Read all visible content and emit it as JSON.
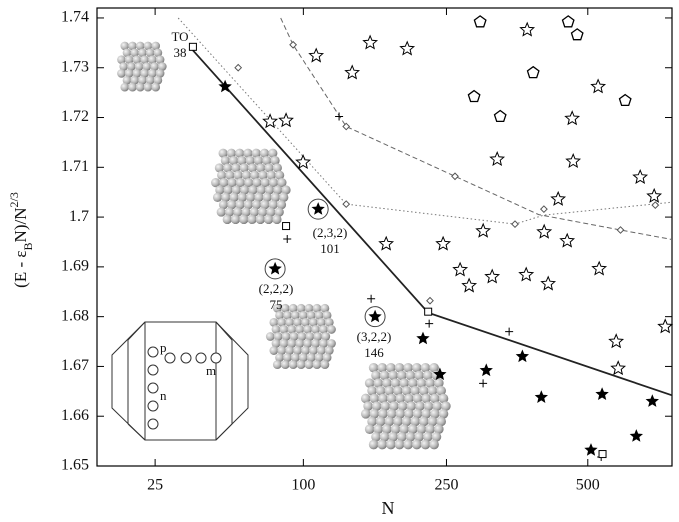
{
  "chart_data": {
    "type": "scatter",
    "xlabel": "N",
    "ylabel_parts": [
      "(E - ε",
      "B",
      "N)/N",
      "2/3"
    ],
    "xscale": "cbrt",
    "xlim": [
      11.4,
      708
    ],
    "ylim": [
      1.65,
      1.742
    ],
    "xticks": [
      25,
      100,
      250,
      500
    ],
    "yticks": [
      1.65,
      1.66,
      1.67,
      1.68,
      1.69,
      1.7,
      1.71,
      1.72,
      1.73,
      1.74
    ],
    "series": [
      {
        "marker": "none",
        "line": "solid",
        "color": "#222",
        "x": [
          38,
          225.6,
          708
        ],
        "values": [
          1.7335,
          1.6808,
          1.6642
        ]
      },
      {
        "marker": "none",
        "line": "dashed",
        "color": "#666",
        "x": [
          84,
          92.5,
          135.6,
          262,
          400,
          575,
          708
        ],
        "values": [
          1.74,
          1.7346,
          1.7182,
          1.7082,
          1.7005,
          1.6974,
          1.6955
        ]
      },
      {
        "marker": "none",
        "line": "dotted",
        "color": "#777",
        "x": [
          32.5,
          135.6,
          357,
          410,
          708
        ],
        "values": [
          1.74,
          1.7026,
          1.6986,
          1.7004,
          1.703
        ]
      },
      {
        "marker": "diamond",
        "color": "#555",
        "x": [
          58.7,
          92.5,
          135.6,
          135.6,
          228,
          262,
          357,
          410,
          575,
          663
        ],
        "values": [
          1.73,
          1.7346,
          1.7182,
          1.7026,
          1.6832,
          1.7082,
          1.6986,
          1.7016,
          1.6974,
          1.7024
        ]
      },
      {
        "marker": "star-filled",
        "color": "#000",
        "x": [
          52.1,
          80.3,
          111.5,
          163.9,
          219,
          241,
          309,
          370,
          405,
          507,
          532,
          614,
          655
        ],
        "values": [
          1.7262,
          1.6896,
          1.7016,
          1.68,
          1.6756,
          1.6684,
          1.6692,
          1.672,
          1.6638,
          1.6532,
          1.6644,
          1.656,
          1.663
        ]
      },
      {
        "marker": "star-open",
        "color": "#000",
        "x": [
          77.1,
          87.6,
          99.8,
          109.9,
          141.2,
          158.8,
          199.6,
          175.7,
          245.4,
          269.3,
          282.6,
          304.1,
          318.5,
          326.7,
          378.7,
          376.9,
          410.5,
          418.2,
          437.9,
          456.2,
          466.6,
          468.7,
          523,
          525.3,
          564.8,
          623.7,
          659.9,
          689.4,
          569.5
        ],
        "values": [
          1.7192,
          1.7194,
          1.711,
          1.7324,
          1.729,
          1.735,
          1.7338,
          1.6946,
          1.6946,
          1.6894,
          1.6862,
          1.6972,
          1.688,
          1.7116,
          1.7376,
          1.6884,
          1.697,
          1.6866,
          1.7036,
          1.6952,
          1.7198,
          1.7112,
          1.7262,
          1.6896,
          1.675,
          1.708,
          1.7042,
          1.678,
          1.6696
        ]
      },
      {
        "marker": "pentagon",
        "color": "#000",
        "x": [
          299.4,
          458.3,
          477.1,
          389.7,
          290.1,
          331.7,
          586.4
        ],
        "values": [
          1.7392,
          1.7392,
          1.7366,
          1.729,
          1.7242,
          1.7202,
          1.7234
        ]
      },
      {
        "marker": "plus",
        "color": "#000",
        "x": [
          88.4,
          129.2,
          159.8,
          226.9,
          304,
          346.8,
          529.9
        ],
        "values": [
          1.6956,
          1.7202,
          1.6836,
          1.6786,
          1.6666,
          1.677,
          1.6518
        ]
      },
      {
        "marker": "square",
        "color": "#000",
        "x": [
          38,
          87.6,
          225.6,
          533
        ],
        "values": [
          1.7342,
          1.6982,
          1.681,
          1.6524
        ]
      }
    ],
    "annotations": [
      {
        "text": "TO",
        "sub": "38"
      },
      {
        "text": "(2,3,2)",
        "sub": "101"
      },
      {
        "text": "(2,2,2)",
        "sub": "75"
      },
      {
        "text": "(3,2,2)",
        "sub": "146"
      }
    ],
    "inset_labels": [
      "p",
      "m",
      "n"
    ]
  }
}
